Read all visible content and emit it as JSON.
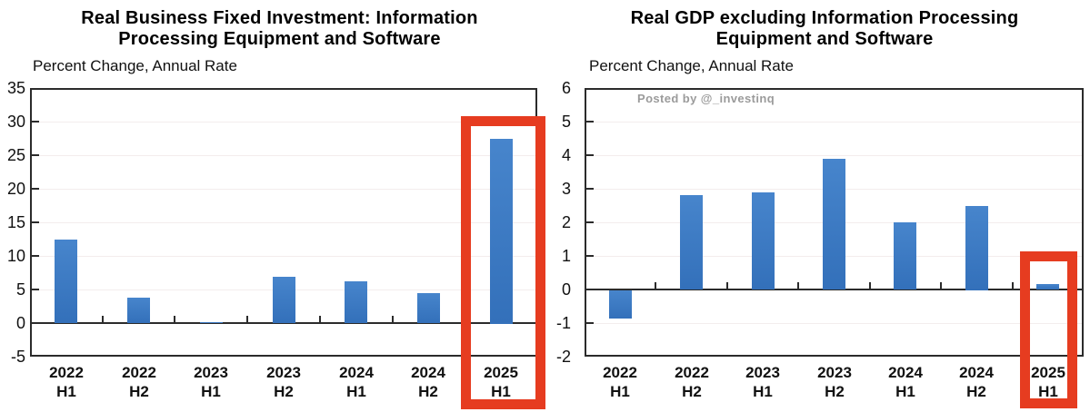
{
  "watermark": {
    "text": "Posted by @_investinq",
    "color": "#9b9b9b"
  },
  "colors": {
    "bar_top": "#4785cc",
    "bar_bottom": "#3370ba",
    "axis": "#2b2b2b",
    "highlight": "#e63c20",
    "gridline": "#f3eded",
    "text": "#111111"
  },
  "chart_data": [
    {
      "type": "bar",
      "title_lines": [
        "Real Business Fixed Investment: Information",
        "Processing Equipment and Software"
      ],
      "subtitle": "Percent Change, Annual Rate",
      "ylabel": "Percent Change, Annual Rate",
      "categories": [
        [
          "2022",
          "H1"
        ],
        [
          "2022",
          "H2"
        ],
        [
          "2023",
          "H1"
        ],
        [
          "2023",
          "H2"
        ],
        [
          "2024",
          "H1"
        ],
        [
          "2024",
          "H2"
        ],
        [
          "2025",
          "H1"
        ]
      ],
      "values": [
        12.4,
        3.8,
        0.1,
        6.9,
        6.2,
        4.5,
        27.5
      ],
      "ylim": [
        -5,
        35
      ],
      "ytick_step": 5,
      "yticks": [
        35,
        30,
        25,
        20,
        15,
        10,
        5,
        0,
        -5
      ],
      "grid": true,
      "legend": "none",
      "highlight_index": 6,
      "highlight_label": "2025 H1"
    },
    {
      "type": "bar",
      "title_lines": [
        "Real GDP excluding Information Processing",
        "Equipment and Software"
      ],
      "subtitle": "Percent Change, Annual Rate",
      "ylabel": "Percent Change, Annual Rate",
      "categories": [
        [
          "2022",
          "H1"
        ],
        [
          "2022",
          "H2"
        ],
        [
          "2023",
          "H1"
        ],
        [
          "2023",
          "H2"
        ],
        [
          "2024",
          "H1"
        ],
        [
          "2024",
          "H2"
        ],
        [
          "2025",
          "H1"
        ]
      ],
      "values": [
        -0.85,
        2.8,
        2.9,
        3.9,
        2.0,
        2.5,
        0.15
      ],
      "ylim": [
        -2,
        6
      ],
      "ytick_step": 1,
      "yticks": [
        6,
        5,
        4,
        3,
        2,
        1,
        0,
        -1,
        -2
      ],
      "grid": true,
      "legend": "none",
      "highlight_index": 6,
      "highlight_label": "2025 H1"
    }
  ]
}
